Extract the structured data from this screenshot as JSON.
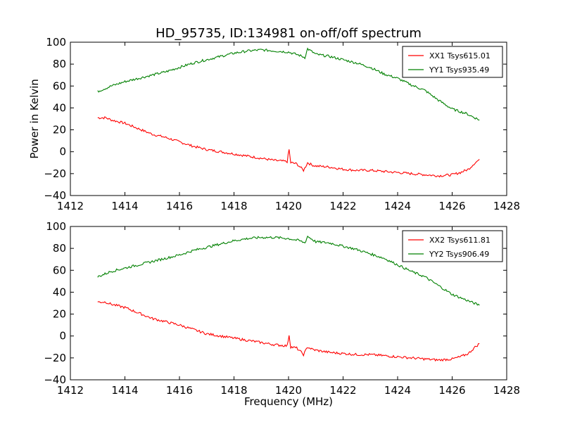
{
  "figure": {
    "title": "HD_95735, ID:134981 on-off/off spectrum",
    "ylabel": "Power in Kelvin",
    "xlabel": "Frequency (MHz)"
  },
  "chart_data": [
    {
      "type": "line",
      "title": "HD_95735, ID:134981 on-off/off spectrum",
      "xlabel": "",
      "ylabel": "Power in Kelvin",
      "xlim": [
        1412,
        1428
      ],
      "ylim": [
        -40,
        100
      ],
      "xticks": [
        1412,
        1414,
        1416,
        1418,
        1420,
        1422,
        1424,
        1426,
        1428
      ],
      "yticks": [
        -40,
        -20,
        0,
        20,
        40,
        60,
        80,
        100
      ],
      "grid": false,
      "legend": "top-right",
      "series": [
        {
          "name": "XX1 Tsys615.01",
          "color": "#ff0000",
          "x": [
            1413.0,
            1413.3,
            1413.5,
            1414.0,
            1414.5,
            1415.0,
            1415.5,
            1416.0,
            1416.5,
            1417.0,
            1417.5,
            1418.0,
            1418.5,
            1419.0,
            1419.5,
            1419.95,
            1420.02,
            1420.08,
            1420.3,
            1420.55,
            1420.7,
            1420.85,
            1421.0,
            1421.5,
            1422.0,
            1422.5,
            1423.0,
            1423.5,
            1424.0,
            1424.5,
            1425.0,
            1425.5,
            1426.0,
            1426.3,
            1426.6,
            1426.8,
            1427.0
          ],
          "y": [
            31,
            31,
            29,
            26,
            21,
            16,
            13,
            9,
            5,
            2,
            0,
            -2,
            -4,
            -6,
            -8,
            -9,
            2,
            -10,
            -11,
            -17,
            -10,
            -12,
            -13,
            -14,
            -16,
            -17,
            -17,
            -18,
            -19,
            -20,
            -21,
            -22,
            -21,
            -19,
            -16,
            -11,
            -7
          ]
        },
        {
          "name": "YY1 Tsys935.49",
          "color": "#008000",
          "x": [
            1413.0,
            1413.5,
            1414.0,
            1414.5,
            1415.0,
            1415.5,
            1416.0,
            1416.5,
            1417.0,
            1417.5,
            1418.0,
            1418.5,
            1419.0,
            1419.5,
            1420.0,
            1420.4,
            1420.6,
            1420.7,
            1421.0,
            1421.5,
            1422.0,
            1422.5,
            1423.0,
            1423.5,
            1424.0,
            1424.5,
            1425.0,
            1425.5,
            1426.0,
            1426.5,
            1427.0
          ],
          "y": [
            55,
            60,
            64,
            67,
            70,
            73,
            77,
            81,
            84,
            87,
            90,
            92,
            93,
            92,
            91,
            88,
            86,
            94,
            89,
            87,
            84,
            81,
            77,
            71,
            67,
            61,
            56,
            47,
            39,
            35,
            29
          ]
        }
      ]
    },
    {
      "type": "line",
      "title": "",
      "xlabel": "Frequency (MHz)",
      "ylabel": "",
      "xlim": [
        1412,
        1428
      ],
      "ylim": [
        -40,
        100
      ],
      "xticks": [
        1412,
        1414,
        1416,
        1418,
        1420,
        1422,
        1424,
        1426,
        1428
      ],
      "yticks": [
        -40,
        -20,
        0,
        20,
        40,
        60,
        80,
        100
      ],
      "grid": false,
      "legend": "top-right",
      "series": [
        {
          "name": "XX2 Tsys611.81",
          "color": "#ff0000",
          "x": [
            1413.0,
            1413.3,
            1413.5,
            1414.0,
            1414.5,
            1415.0,
            1415.5,
            1416.0,
            1416.5,
            1417.0,
            1417.5,
            1418.0,
            1418.5,
            1419.0,
            1419.5,
            1419.95,
            1420.02,
            1420.08,
            1420.3,
            1420.55,
            1420.7,
            1420.85,
            1421.0,
            1421.5,
            1422.0,
            1422.5,
            1423.0,
            1423.5,
            1424.0,
            1424.5,
            1425.0,
            1425.5,
            1426.0,
            1426.3,
            1426.6,
            1426.8,
            1427.0
          ],
          "y": [
            31,
            31,
            29,
            26,
            21,
            16,
            13,
            10,
            6,
            2,
            0,
            -2,
            -4,
            -6,
            -8,
            -9,
            1,
            -10,
            -11,
            -17,
            -10,
            -12,
            -13,
            -15,
            -16,
            -17,
            -17,
            -18,
            -19,
            -20,
            -21,
            -22,
            -21,
            -19,
            -16,
            -11,
            -7
          ]
        },
        {
          "name": "YY2 Tsys906.49",
          "color": "#008000",
          "x": [
            1413.0,
            1413.5,
            1414.0,
            1414.5,
            1415.0,
            1415.5,
            1416.0,
            1416.5,
            1417.0,
            1417.5,
            1418.0,
            1418.5,
            1419.0,
            1419.5,
            1420.0,
            1420.4,
            1420.6,
            1420.7,
            1421.0,
            1421.5,
            1422.0,
            1422.5,
            1423.0,
            1423.5,
            1424.0,
            1424.5,
            1425.0,
            1425.5,
            1426.0,
            1426.5,
            1427.0
          ],
          "y": [
            54,
            59,
            62,
            65,
            68,
            71,
            74,
            78,
            81,
            84,
            87,
            89,
            90,
            90,
            89,
            87,
            85,
            91,
            86,
            85,
            82,
            79,
            75,
            71,
            65,
            59,
            54,
            46,
            38,
            33,
            28
          ]
        }
      ]
    }
  ]
}
